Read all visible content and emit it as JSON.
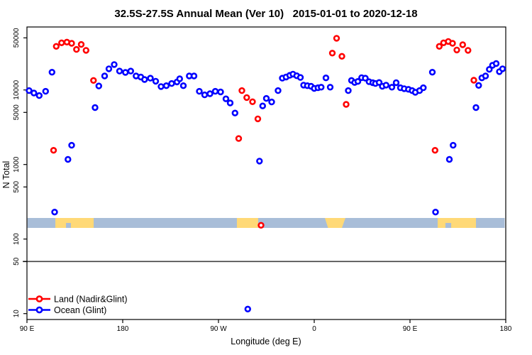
{
  "chart_data": {
    "type": "scatter",
    "title": "32.5S-27.5S Annual Mean (Ver 10)   2015-01-01 to 2020-12-18",
    "xlabel": "Longitude (deg E)",
    "ylabel": "N Total",
    "y_scale": "log",
    "y_range": [
      10,
      50000
    ],
    "x_range": [
      90,
      540
    ],
    "x_ticks": [
      90,
      180,
      270,
      360,
      450,
      540
    ],
    "x_tick_labels": [
      "90 E",
      "180",
      "90 W",
      "0",
      "90 E",
      "180"
    ],
    "y_ticks": [
      10,
      50,
      100,
      500,
      1000,
      5000,
      10000,
      50000
    ],
    "y_tick_labels": [
      "10",
      "50",
      "100",
      "500",
      "1000",
      "5000",
      "10000",
      "50000"
    ],
    "reference_line_value": 50,
    "legend": [
      {
        "label": "Land (Nadir&Glint)",
        "color": "#ff0000"
      },
      {
        "label": "Ocean (Glint)",
        "color": "#0000ff"
      }
    ],
    "colors": {
      "land_series": "#ff0000",
      "ocean_series": "#0000ff",
      "band_ocean": "#a8bdd8",
      "band_land": "#ffd977",
      "reference_line": "#404040",
      "axis": "#000000"
    },
    "land_ocean_band": {
      "description": "land/ocean strip along longitude",
      "ocean_span": [
        90.5,
        539
      ],
      "land_segments": [
        {
          "from": 116.7,
          "to": 152.7,
          "notch": [
            126.7,
            131.3
          ]
        },
        {
          "from": 287.3,
          "to": 307.3
        },
        {
          "from": 370.0,
          "to": 389.3,
          "taper": [
            373.0,
            386.0
          ]
        },
        {
          "from": 476.0,
          "to": 512.0,
          "notch": [
            483.3,
            488.7
          ]
        }
      ]
    },
    "series": [
      {
        "name": "Land (Nadir&Glint)",
        "color": "#ff0000",
        "points": [
          [
            115,
            1550
          ],
          [
            117.5,
            38400
          ],
          [
            122.5,
            42900
          ],
          [
            127.5,
            43800
          ],
          [
            132,
            42200
          ],
          [
            136.5,
            35000
          ],
          [
            141,
            40800
          ],
          [
            145.5,
            34000
          ],
          [
            152.5,
            13400
          ],
          [
            289,
            2230
          ],
          [
            292,
            9800
          ],
          [
            296.5,
            7900
          ],
          [
            302,
            6950
          ],
          [
            307,
            4100
          ],
          [
            310,
            153
          ],
          [
            377,
            31200
          ],
          [
            381,
            49400
          ],
          [
            386,
            28300
          ],
          [
            390,
            6400
          ],
          [
            473.5,
            1550
          ],
          [
            477.5,
            38400
          ],
          [
            481.5,
            42900
          ],
          [
            486,
            44700
          ],
          [
            490,
            42200
          ],
          [
            494,
            34400
          ],
          [
            499.5,
            40400
          ],
          [
            504.5,
            34000
          ],
          [
            510,
            13500
          ]
        ]
      },
      {
        "name": "Ocean (Glint)",
        "color": "#0000ff",
        "points": [
          [
            92,
            9800
          ],
          [
            96.5,
            9100
          ],
          [
            101.5,
            8400
          ],
          [
            107.5,
            9600
          ],
          [
            113.5,
            17300
          ],
          [
            116,
            230
          ],
          [
            128.5,
            1170
          ],
          [
            132,
            1810
          ],
          [
            154,
            5800
          ],
          [
            157.5,
            11300
          ],
          [
            163,
            15400
          ],
          [
            167,
            19200
          ],
          [
            172,
            21900
          ],
          [
            177,
            17900
          ],
          [
            182.5,
            17200
          ],
          [
            187.5,
            17900
          ],
          [
            192.5,
            15400
          ],
          [
            197,
            14900
          ],
          [
            200.5,
            13800
          ],
          [
            206,
            14400
          ],
          [
            211,
            13100
          ],
          [
            216,
            11100
          ],
          [
            221,
            11400
          ],
          [
            226,
            12200
          ],
          [
            231,
            12800
          ],
          [
            233.5,
            14100
          ],
          [
            237,
            11400
          ],
          [
            242.5,
            15400
          ],
          [
            247,
            15400
          ],
          [
            252,
            9600
          ],
          [
            257,
            8600
          ],
          [
            262,
            8900
          ],
          [
            267,
            9600
          ],
          [
            272,
            9400
          ],
          [
            277,
            7600
          ],
          [
            281,
            6700
          ],
          [
            285.5,
            4900
          ],
          [
            297.5,
            11.5
          ],
          [
            308.5,
            1110
          ],
          [
            311.5,
            6100
          ],
          [
            315,
            7700
          ],
          [
            320,
            6900
          ],
          [
            326,
            9800
          ],
          [
            330,
            14400
          ],
          [
            333.5,
            14900
          ],
          [
            337,
            15700
          ],
          [
            340,
            16300
          ],
          [
            343.5,
            15500
          ],
          [
            347,
            14700
          ],
          [
            350,
            11600
          ],
          [
            353.5,
            11400
          ],
          [
            357,
            11200
          ],
          [
            360,
            10500
          ],
          [
            363.5,
            10700
          ],
          [
            366.5,
            10900
          ],
          [
            371,
            14500
          ],
          [
            375,
            10900
          ],
          [
            392,
            9800
          ],
          [
            395,
            13400
          ],
          [
            398,
            12600
          ],
          [
            401,
            13000
          ],
          [
            404.5,
            14600
          ],
          [
            408,
            14400
          ],
          [
            411.5,
            12900
          ],
          [
            415,
            12500
          ],
          [
            417.5,
            12200
          ],
          [
            421,
            12600
          ],
          [
            424,
            11200
          ],
          [
            427.5,
            11600
          ],
          [
            433,
            10900
          ],
          [
            437,
            12500
          ],
          [
            441,
            10700
          ],
          [
            444.5,
            10400
          ],
          [
            448.5,
            10200
          ],
          [
            452,
            9800
          ],
          [
            455,
            9300
          ],
          [
            459,
            9800
          ],
          [
            462.5,
            10700
          ],
          [
            471,
            17300
          ],
          [
            474,
            230
          ],
          [
            487,
            1170
          ],
          [
            490.5,
            1810
          ],
          [
            512,
            5800
          ],
          [
            514.5,
            11500
          ],
          [
            517.5,
            14500
          ],
          [
            521,
            15400
          ],
          [
            524.5,
            18900
          ],
          [
            527.5,
            21400
          ],
          [
            531,
            22600
          ],
          [
            534,
            17600
          ],
          [
            537,
            19200
          ]
        ]
      }
    ]
  }
}
